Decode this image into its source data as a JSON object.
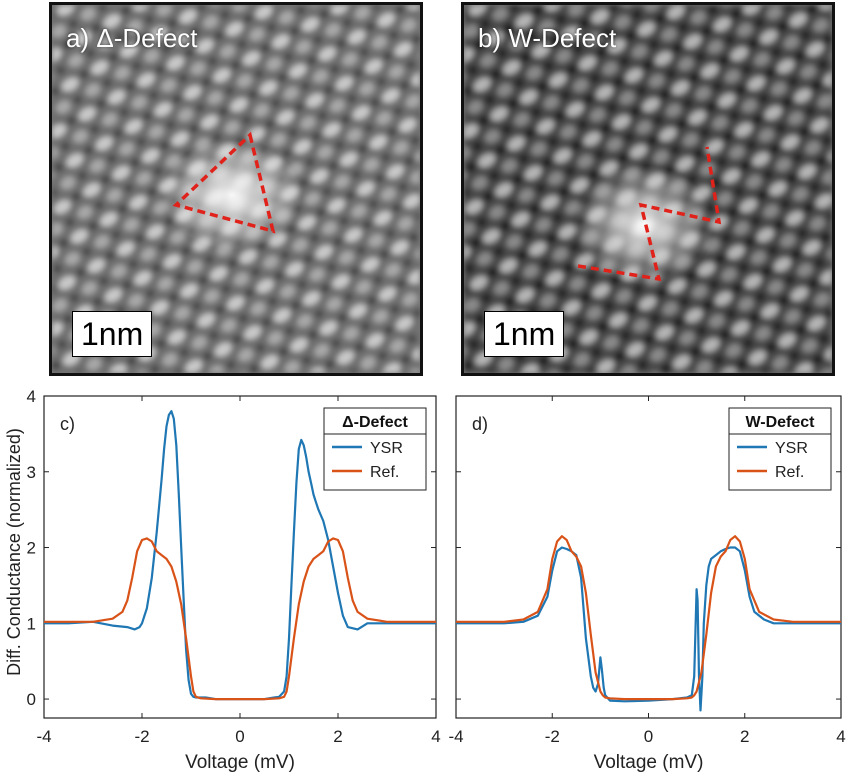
{
  "images": [
    {
      "label": "a) Δ-Defect",
      "scalebar": "1nm"
    },
    {
      "label": "b) W-Defect",
      "scalebar": "1nm"
    }
  ],
  "colors": {
    "ysr": "#1f77b4",
    "ref": "#d95319",
    "marker": "#e0221b"
  },
  "ylabel": "Diff. Conductance (normalized)",
  "chart_data": [
    {
      "type": "line",
      "panel_label": "c)",
      "legend_title": "Δ-Defect",
      "legend_placement": "top-right",
      "xlabel": "Voltage (mV)",
      "xlim": [
        -4,
        4
      ],
      "ylim": [
        -0.25,
        4
      ],
      "xticks": [
        "-4",
        "-2",
        "0",
        "2",
        "4"
      ],
      "yticks": [
        "0",
        "1",
        "2",
        "3",
        "4"
      ],
      "series": [
        {
          "name": "YSR",
          "x": [
            -4,
            -3.5,
            -3,
            -2.6,
            -2.3,
            -2.15,
            -2.05,
            -2.0,
            -1.9,
            -1.8,
            -1.7,
            -1.6,
            -1.55,
            -1.5,
            -1.45,
            -1.4,
            -1.35,
            -1.3,
            -1.25,
            -1.2,
            -1.15,
            -1.1,
            -1.05,
            -1.0,
            -0.95,
            -0.9,
            -0.8,
            -0.7,
            -0.5,
            0,
            0.5,
            0.7,
            0.8,
            0.9,
            0.95,
            1.0,
            1.05,
            1.1,
            1.15,
            1.2,
            1.25,
            1.3,
            1.35,
            1.4,
            1.45,
            1.5,
            1.55,
            1.6,
            1.7,
            1.8,
            1.9,
            2.0,
            2.1,
            2.2,
            2.4,
            2.6,
            3.0,
            3.5,
            4
          ],
          "values": [
            1.0,
            1.0,
            1.02,
            0.97,
            0.95,
            0.92,
            0.95,
            1.0,
            1.2,
            1.6,
            2.2,
            2.9,
            3.3,
            3.6,
            3.75,
            3.8,
            3.7,
            3.35,
            2.7,
            2.0,
            1.3,
            0.65,
            0.25,
            0.07,
            0.03,
            0.02,
            0.02,
            0.02,
            0.0,
            0.0,
            0.0,
            0.02,
            0.03,
            0.1,
            0.3,
            0.8,
            1.5,
            2.2,
            2.85,
            3.3,
            3.42,
            3.35,
            3.2,
            3.0,
            2.85,
            2.7,
            2.6,
            2.5,
            2.35,
            2.1,
            1.75,
            1.4,
            1.1,
            0.95,
            0.92,
            1.0,
            1.0,
            1.0,
            1.0
          ]
        },
        {
          "name": "Ref.",
          "x": [
            -4,
            -3,
            -2.6,
            -2.4,
            -2.3,
            -2.2,
            -2.1,
            -2.0,
            -1.9,
            -1.8,
            -1.7,
            -1.6,
            -1.5,
            -1.4,
            -1.3,
            -1.2,
            -1.1,
            -1.0,
            -0.95,
            -0.9,
            -0.8,
            -0.5,
            0,
            0.5,
            0.8,
            0.9,
            0.95,
            1.0,
            1.1,
            1.2,
            1.3,
            1.4,
            1.5,
            1.6,
            1.7,
            1.8,
            1.9,
            2.0,
            2.1,
            2.2,
            2.3,
            2.4,
            2.6,
            3,
            4
          ],
          "values": [
            1.02,
            1.02,
            1.06,
            1.15,
            1.3,
            1.6,
            1.95,
            2.1,
            2.12,
            2.08,
            1.95,
            1.9,
            1.85,
            1.75,
            1.55,
            1.25,
            0.8,
            0.3,
            0.1,
            0.03,
            0.01,
            0.0,
            0.0,
            0.0,
            0.01,
            0.03,
            0.1,
            0.3,
            0.8,
            1.25,
            1.55,
            1.75,
            1.85,
            1.9,
            1.95,
            2.08,
            2.12,
            2.1,
            1.95,
            1.6,
            1.3,
            1.15,
            1.06,
            1.02,
            1.02
          ]
        }
      ]
    },
    {
      "type": "line",
      "panel_label": "d)",
      "legend_title": "W-Defect",
      "legend_placement": "top-right",
      "xlabel": "Voltage (mV)",
      "xlim": [
        -4,
        4
      ],
      "ylim": [
        -0.25,
        4
      ],
      "xticks": [
        "-4",
        "-2",
        "0",
        "2",
        "4"
      ],
      "yticks": [],
      "series": [
        {
          "name": "YSR",
          "x": [
            -4,
            -3,
            -2.6,
            -2.3,
            -2.1,
            -2.0,
            -1.9,
            -1.8,
            -1.7,
            -1.6,
            -1.5,
            -1.4,
            -1.3,
            -1.2,
            -1.15,
            -1.1,
            -1.05,
            -1.0,
            -0.97,
            -0.93,
            -0.9,
            -0.8,
            -0.5,
            0,
            0.5,
            0.8,
            0.9,
            0.95,
            1.0,
            1.02,
            1.05,
            1.08,
            1.12,
            1.15,
            1.2,
            1.25,
            1.3,
            1.4,
            1.5,
            1.6,
            1.7,
            1.8,
            1.9,
            2.0,
            2.1,
            2.2,
            2.4,
            2.6,
            3,
            4
          ],
          "values": [
            1.0,
            1.0,
            1.02,
            1.1,
            1.35,
            1.7,
            1.95,
            2.0,
            1.98,
            1.95,
            1.9,
            1.6,
            0.8,
            0.3,
            0.15,
            0.1,
            0.2,
            0.55,
            0.4,
            0.15,
            0.05,
            -0.02,
            -0.03,
            -0.02,
            0.0,
            0.02,
            0.05,
            0.3,
            1.45,
            1.3,
            0.3,
            -0.15,
            0.3,
            1.0,
            1.5,
            1.75,
            1.85,
            1.9,
            1.95,
            1.98,
            2.0,
            2.0,
            1.95,
            1.7,
            1.35,
            1.15,
            1.05,
            1.0,
            1.0,
            1.0
          ]
        },
        {
          "name": "Ref.",
          "x": [
            -4,
            -3,
            -2.6,
            -2.3,
            -2.1,
            -2.0,
            -1.9,
            -1.8,
            -1.7,
            -1.6,
            -1.5,
            -1.4,
            -1.3,
            -1.2,
            -1.1,
            -1.0,
            -0.95,
            -0.9,
            -0.8,
            -0.5,
            0,
            0.5,
            0.8,
            0.9,
            0.95,
            1.0,
            1.1,
            1.2,
            1.3,
            1.4,
            1.5,
            1.6,
            1.7,
            1.8,
            1.9,
            2.0,
            2.1,
            2.3,
            2.6,
            3,
            4
          ],
          "values": [
            1.02,
            1.02,
            1.05,
            1.15,
            1.45,
            1.85,
            2.08,
            2.15,
            2.1,
            1.95,
            1.88,
            1.75,
            1.4,
            0.85,
            0.35,
            0.1,
            0.05,
            0.02,
            0.01,
            0.0,
            0.0,
            0.0,
            0.01,
            0.02,
            0.05,
            0.1,
            0.35,
            0.85,
            1.4,
            1.75,
            1.88,
            1.95,
            2.1,
            2.15,
            2.08,
            1.85,
            1.45,
            1.15,
            1.05,
            1.02,
            1.02
          ]
        }
      ]
    }
  ]
}
